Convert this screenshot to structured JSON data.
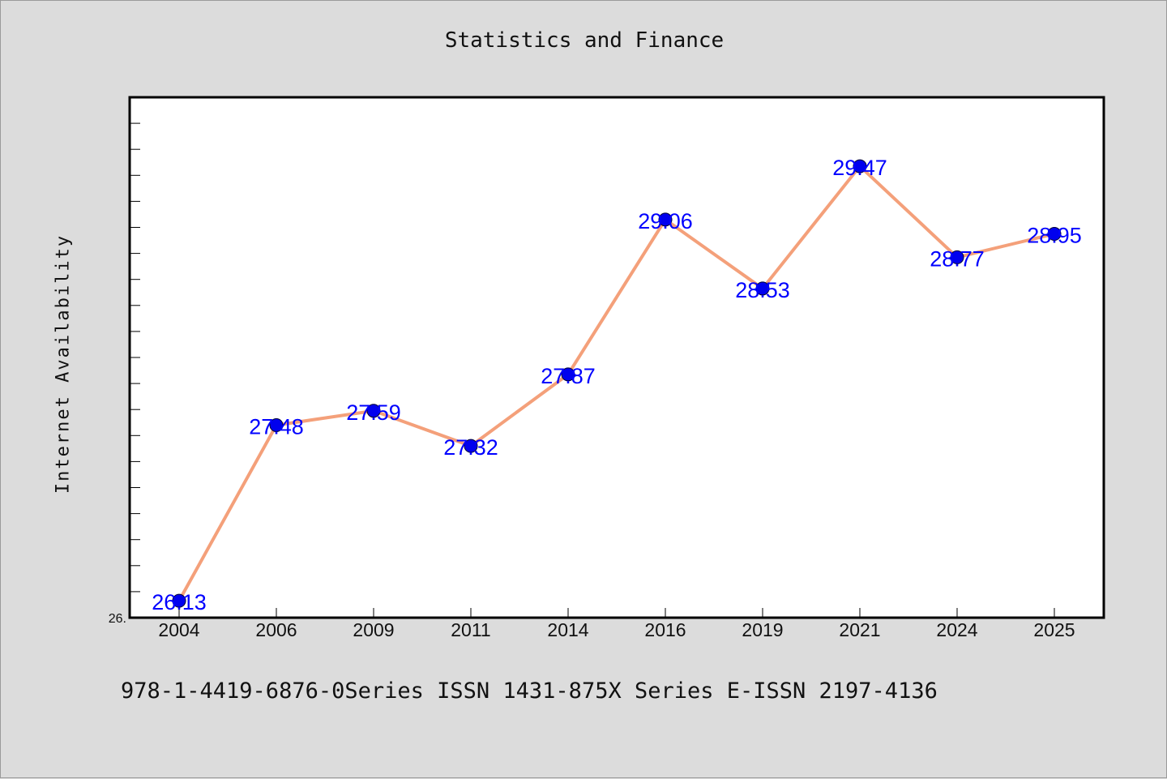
{
  "chart_data": {
    "type": "line",
    "title": "Statistics and Finance",
    "xlabel": "",
    "ylabel": "Internet Availability",
    "categories": [
      "2004",
      "2006",
      "2009",
      "2011",
      "2014",
      "2016",
      "2019",
      "2021",
      "2024",
      "2025"
    ],
    "series": [
      {
        "values": [
          26.13,
          27.48,
          27.59,
          27.32,
          27.87,
          29.06,
          28.53,
          29.47,
          28.77,
          28.95
        ]
      }
    ],
    "ylim": [
      26.0,
      30.0
    ],
    "yticks": [
      "26."
    ],
    "grid": false,
    "legend": "none",
    "colors": {
      "line": "#f4a07a",
      "marker": "#0000ee",
      "data_label": "#0000ff",
      "plot_background": "#ffffff",
      "page_background": "#dcdcdc"
    }
  },
  "footer": {
    "text": "978-1-4419-6876-0Series ISSN 1431-875X Series E-ISSN 2197-4136"
  }
}
